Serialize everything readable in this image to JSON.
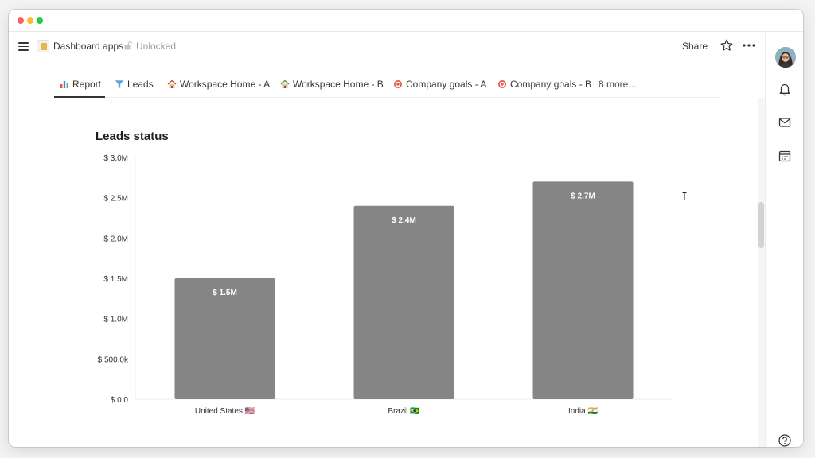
{
  "window": {
    "page_title": "Dashboard apps",
    "lock_status": "Unlocked",
    "share_label": "Share"
  },
  "tabs": [
    {
      "label": "Report",
      "icon": "bar-chart-icon"
    },
    {
      "label": "Leads",
      "icon": "filter-icon"
    },
    {
      "label": "Workspace Home - A",
      "icon": "house-icon"
    },
    {
      "label": "Workspace Home - B",
      "icon": "house-icon"
    },
    {
      "label": "Company goals - A",
      "icon": "target-icon"
    },
    {
      "label": "Company goals - B",
      "icon": "target-icon"
    },
    {
      "label": "8 more...",
      "icon": ""
    }
  ],
  "chart_data": {
    "type": "bar",
    "title": "Leads status",
    "categories": [
      "United States 🇺🇸",
      "Brazil 🇧🇷",
      "India 🇮🇳"
    ],
    "values": [
      1500000,
      2400000,
      2700000
    ],
    "data_labels": [
      "$ 1.5M",
      "$ 2.4M",
      "$ 2.7M"
    ],
    "yticks": [
      0,
      500000,
      1000000,
      1500000,
      2000000,
      2500000,
      3000000
    ],
    "ytick_labels": [
      "$ 0.0",
      "$ 500.0k",
      "$ 1.0M",
      "$ 1.5M",
      "$ 2.0M",
      "$ 2.5M",
      "$ 3.0M"
    ],
    "ylim": [
      0,
      3000000
    ],
    "grid": false,
    "bar_color": "#858585",
    "label_color": "#ffffff"
  },
  "colors": {
    "accent": "#37352f",
    "muted": "#9b9a97"
  },
  "right_rail": {
    "icons": [
      "avatar",
      "bell-icon",
      "mail-icon",
      "calendar-icon",
      "help-icon"
    ]
  }
}
